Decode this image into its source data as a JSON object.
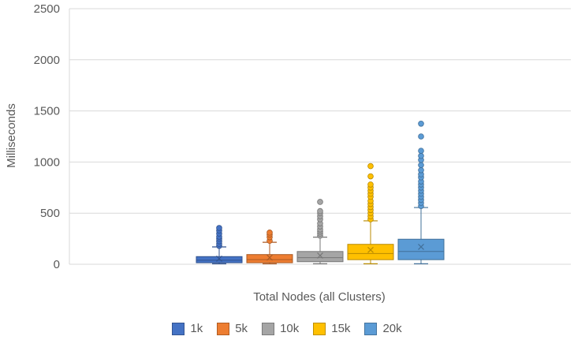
{
  "chart_data": {
    "type": "box",
    "title": "",
    "xlabel": "Total Nodes (all Clusters)",
    "ylabel": "Milliseconds",
    "ylim": [
      0,
      2500
    ],
    "yticks": [
      0,
      500,
      1000,
      1500,
      2000,
      2500
    ],
    "grid": "horizontal",
    "legend_position": "bottom",
    "series": [
      {
        "name": "1k",
        "color": "#4472C4",
        "min": 5,
        "q1": 15,
        "median": 40,
        "q3": 75,
        "max": 170,
        "mean": 55,
        "outliers": [
          180,
          200,
          225,
          250,
          270,
          300,
          330,
          355
        ]
      },
      {
        "name": "5k",
        "color": "#ED7D31",
        "min": 5,
        "q1": 15,
        "median": 45,
        "q3": 95,
        "max": 215,
        "mean": 65,
        "outliers": [
          230,
          265,
          290,
          310
        ]
      },
      {
        "name": "10k",
        "color": "#A5A5A5",
        "min": 5,
        "q1": 25,
        "median": 65,
        "q3": 125,
        "max": 265,
        "mean": 85,
        "outliers": [
          280,
          300,
          320,
          340,
          370,
          400,
          440,
          470,
          500,
          520,
          610
        ]
      },
      {
        "name": "15k",
        "color": "#FFC000",
        "min": 5,
        "q1": 45,
        "median": 105,
        "q3": 195,
        "max": 425,
        "mean": 140,
        "outliers": [
          440,
          470,
          500,
          530,
          560,
          590,
          620,
          660,
          690,
          720,
          750,
          780,
          860,
          960
        ]
      },
      {
        "name": "20k",
        "color": "#5B9BD5",
        "min": 5,
        "q1": 45,
        "median": 125,
        "q3": 245,
        "max": 555,
        "mean": 170,
        "outliers": [
          570,
          600,
          630,
          660,
          690,
          720,
          750,
          780,
          810,
          850,
          880,
          920,
          970,
          1020,
          1060,
          1110,
          1250,
          1375
        ]
      }
    ]
  }
}
